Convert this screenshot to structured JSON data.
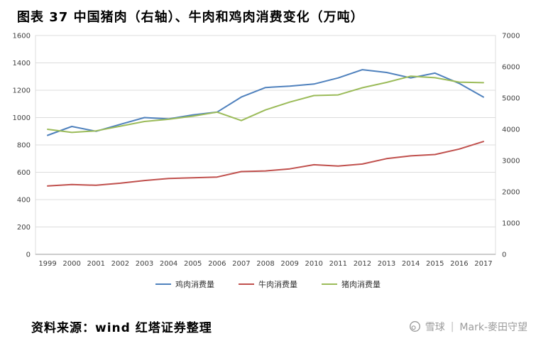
{
  "footer": {
    "source": "资料来源：wind 红塔证券整理",
    "watermark_site": "雪球",
    "watermark_sep": "|",
    "watermark_user": "Mark-麥田守望"
  },
  "chart_data": {
    "type": "line",
    "title": "图表 37 中国猪肉（右轴）、牛肉和鸡肉消费变化（万吨）",
    "categories": [
      "1999",
      "2000",
      "2001",
      "2002",
      "2003",
      "2004",
      "2005",
      "2006",
      "2007",
      "2008",
      "2009",
      "2010",
      "2011",
      "2012",
      "2013",
      "2014",
      "2015",
      "2016",
      "2017"
    ],
    "series": [
      {
        "name": "鸡肉消费量",
        "axis": "left",
        "color": "#4F81BD",
        "values": [
          870,
          935,
          900,
          950,
          1000,
          990,
          1020,
          1040,
          1150,
          1220,
          1230,
          1245,
          1290,
          1350,
          1330,
          1290,
          1325,
          1250,
          1150
        ]
      },
      {
        "name": "牛肉消费量",
        "axis": "left",
        "color": "#C0504D",
        "values": [
          500,
          510,
          505,
          520,
          540,
          555,
          560,
          565,
          605,
          610,
          625,
          655,
          645,
          660,
          700,
          720,
          730,
          770,
          825
        ]
      },
      {
        "name": "猪肉消费量",
        "axis": "right",
        "color": "#9BBB59",
        "values": [
          4000,
          3900,
          3950,
          4100,
          4250,
          4320,
          4420,
          4550,
          4280,
          4620,
          4870,
          5080,
          5100,
          5330,
          5500,
          5700,
          5650,
          5510,
          5490
        ]
      }
    ],
    "left_axis": {
      "min": 0,
      "max": 1600,
      "step": 200
    },
    "right_axis": {
      "min": 0,
      "max": 7000,
      "step": 1000
    },
    "grid": true,
    "legend_position": "bottom",
    "grid_color": "#dcdcdc",
    "axis_line_color": "#9a9a9a",
    "tick_color": "#404040"
  }
}
